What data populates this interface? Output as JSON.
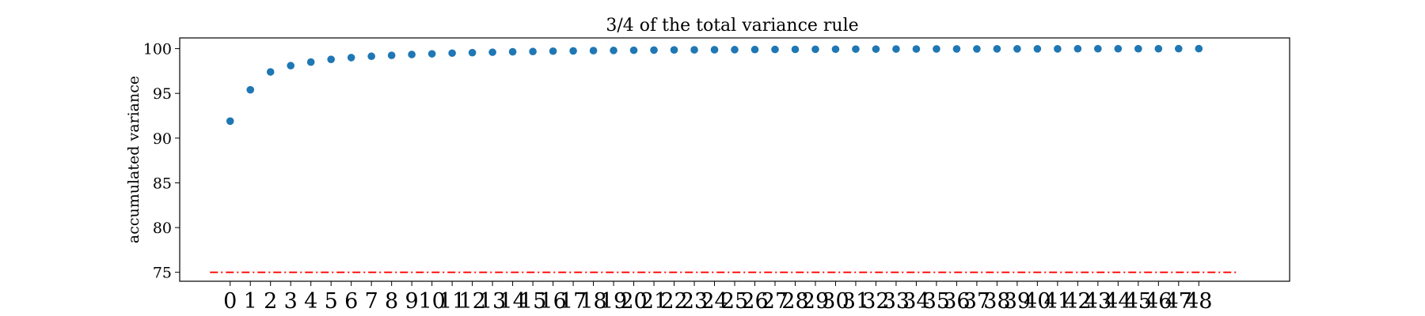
{
  "chart_data": {
    "type": "scatter",
    "title": "3/4 of the total variance rule",
    "xlabel": "",
    "ylabel": "accumulated variance",
    "ylim": [
      74,
      101.2
    ],
    "xlim": [
      -2.5,
      52.5
    ],
    "grid": false,
    "legend": "none",
    "x_ticks": [
      "0",
      "1",
      "2",
      "3",
      "4",
      "5",
      "6",
      "7",
      "8",
      "9",
      "10",
      "11",
      "12",
      "13",
      "14",
      "15",
      "16",
      "17",
      "18",
      "19",
      "20",
      "21",
      "22",
      "23",
      "24",
      "25",
      "26",
      "27",
      "28",
      "29",
      "30",
      "31",
      "32",
      "33",
      "34",
      "35",
      "36",
      "37",
      "38",
      "39",
      "40",
      "41",
      "42",
      "43",
      "44",
      "45",
      "46",
      "47",
      "48"
    ],
    "y_ticks": [
      75,
      80,
      85,
      90,
      95,
      100
    ],
    "series": [
      {
        "color": "#1f77b4",
        "x": [
          0,
          1,
          2,
          3,
          4,
          5,
          6,
          7,
          8,
          9,
          10,
          11,
          12,
          13,
          14,
          15,
          16,
          17,
          18,
          19,
          20,
          21,
          22,
          23,
          24,
          25,
          26,
          27,
          28,
          29,
          30,
          31,
          32,
          33,
          34,
          35,
          36,
          37,
          38,
          39,
          40,
          41,
          42,
          43,
          44,
          45,
          46,
          47,
          48
        ],
        "y": [
          91.9,
          95.4,
          97.4,
          98.1,
          98.5,
          98.8,
          99.0,
          99.15,
          99.25,
          99.35,
          99.42,
          99.5,
          99.55,
          99.6,
          99.65,
          99.68,
          99.72,
          99.75,
          99.78,
          99.8,
          99.82,
          99.84,
          99.86,
          99.87,
          99.88,
          99.89,
          99.9,
          99.91,
          99.92,
          99.93,
          99.94,
          99.95,
          99.95,
          99.96,
          99.96,
          99.97,
          99.97,
          99.97,
          99.98,
          99.98,
          99.98,
          99.98,
          99.99,
          99.99,
          99.99,
          99.99,
          99.99,
          100.0,
          100.0
        ]
      }
    ],
    "threshold_line": {
      "y": 75,
      "x_range": [
        -1,
        50
      ],
      "color": "#ff0000",
      "style": "dash-dot"
    }
  }
}
